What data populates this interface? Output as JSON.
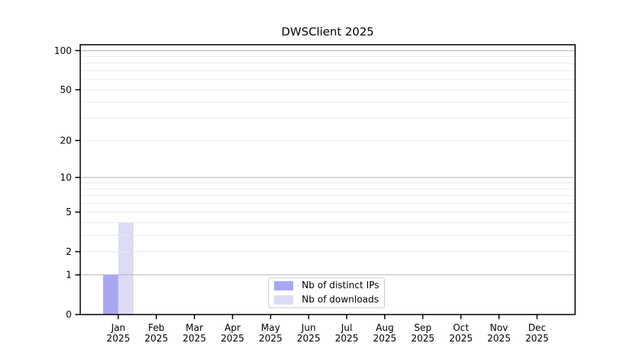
{
  "chart_data": {
    "type": "bar",
    "title": "DWSClient 2025",
    "categories": [
      "Jan",
      "Feb",
      "Mar",
      "Apr",
      "May",
      "Jun",
      "Jul",
      "Aug",
      "Sep",
      "Oct",
      "Nov",
      "Dec"
    ],
    "year": "2025",
    "series": [
      {
        "name": "Nb of distinct IPs",
        "color": "#a7a7f2",
        "values": [
          1,
          0,
          0,
          0,
          0,
          0,
          0,
          0,
          0,
          0,
          0,
          0
        ]
      },
      {
        "name": "Nb of downloads",
        "color": "#dcdcf7",
        "values": [
          4,
          0,
          0,
          0,
          0,
          0,
          0,
          0,
          0,
          0,
          0,
          0
        ]
      }
    ],
    "xlabel": "",
    "ylabel": "",
    "yscale": "log(1+y)",
    "ylim": [
      0,
      110
    ],
    "yticks": [
      0,
      1,
      2,
      5,
      10,
      20,
      50,
      100
    ],
    "ytick_labels": [
      "0",
      "1",
      "2",
      "5",
      "10",
      "20",
      "50",
      "100"
    ],
    "minor_gridline_values": [
      2,
      3,
      4,
      5,
      6,
      7,
      8,
      9,
      20,
      30,
      40,
      50,
      60,
      70,
      80,
      90
    ],
    "major_gridline_values": [
      1,
      10,
      100
    ],
    "grid": true,
    "legend_position": "lower center"
  }
}
